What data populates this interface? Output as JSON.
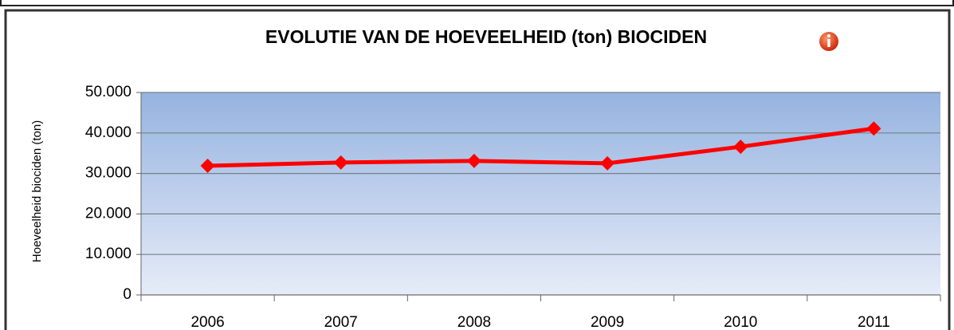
{
  "chart_data": {
    "type": "line",
    "title": "EVOLUTIE VAN DE HOEVEELHEID (ton) BIOCIDEN",
    "y_label": "Hoeveelheid biociden (ton)",
    "categories": [
      "2006",
      "2007",
      "2008",
      "2009",
      "2010",
      "2011"
    ],
    "series": [
      {
        "name": "Hoeveelheid biociden",
        "color": "#ff0000",
        "values": [
          31900,
          32700,
          33100,
          32500,
          36600,
          41100
        ]
      }
    ],
    "ylim": [
      0,
      50000
    ],
    "yticks": [
      0,
      {
        "value": 10000,
        "label": "10.000"
      },
      {
        "value": 20000,
        "label": "20.000"
      },
      {
        "value": 30000,
        "label": "30.000"
      },
      {
        "value": 40000,
        "label": "40.000"
      },
      {
        "value": 50000,
        "label": "50.000"
      }
    ],
    "grid": true
  }
}
